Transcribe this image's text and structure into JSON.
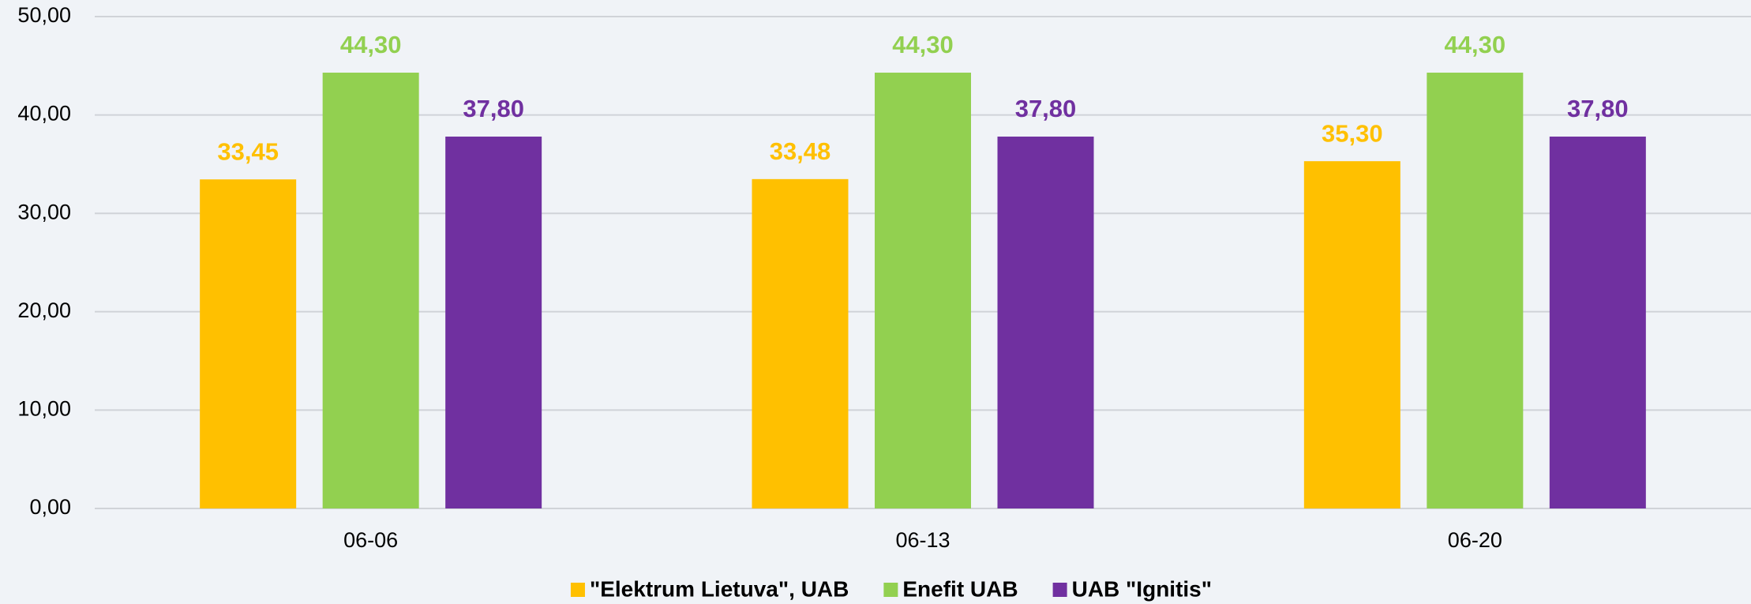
{
  "chart_data": {
    "type": "bar",
    "categories": [
      "06-06",
      "06-13",
      "06-20"
    ],
    "series": [
      {
        "name": "\"Elektrum Lietuva\", UAB",
        "color": "#ffc000",
        "values": [
          33.45,
          33.48,
          35.3
        ],
        "value_labels": [
          "33,45",
          "33,48",
          "35,30"
        ]
      },
      {
        "name": "Enefit UAB",
        "color": "#92d050",
        "values": [
          44.3,
          44.3,
          44.3
        ],
        "value_labels": [
          "44,30",
          "44,30",
          "44,30"
        ]
      },
      {
        "name": "UAB \"Ignitis\"",
        "color": "#7030a0",
        "values": [
          37.8,
          37.8,
          37.8
        ],
        "value_labels": [
          "37,80",
          "37,80",
          "37,80"
        ]
      }
    ],
    "ylim": [
      0,
      50
    ],
    "yticks": [
      {
        "value": 0,
        "label": "0,00"
      },
      {
        "value": 10,
        "label": "10,00"
      },
      {
        "value": 20,
        "label": "20,00"
      },
      {
        "value": 30,
        "label": "30,00"
      },
      {
        "value": 40,
        "label": "40,00"
      },
      {
        "value": 50,
        "label": "50,00"
      }
    ],
    "grid": true,
    "legend": "bottom"
  }
}
